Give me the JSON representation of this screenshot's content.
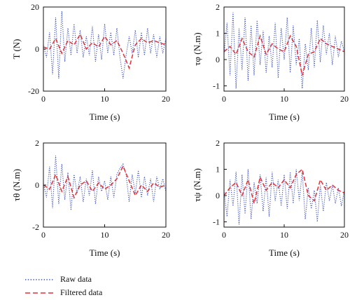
{
  "colors": {
    "raw": "#3b4fbf",
    "filtered": "#e0303a",
    "axis": "#111111"
  },
  "legend": [
    {
      "label": "Raw data",
      "series": "raw",
      "style": "dotted"
    },
    {
      "label": "Filtered data",
      "series": "filtered",
      "style": "dashed"
    }
  ],
  "chart_data": [
    {
      "type": "line",
      "xlabel": "Time (s)",
      "ylabel": "T (N)",
      "xlim": [
        0,
        20
      ],
      "ylim": [
        -20,
        20
      ],
      "xticks": [
        0,
        10,
        20
      ],
      "yticks": [
        -20,
        0,
        20
      ],
      "series": [
        {
          "name": "Raw data",
          "key": "raw",
          "x": [
            0,
            0.5,
            1,
            1.5,
            2,
            2.5,
            3,
            3.5,
            4,
            4.5,
            5,
            5.5,
            6,
            6.5,
            7,
            7.5,
            8,
            8.5,
            9,
            9.5,
            10,
            10.5,
            11,
            11.5,
            12,
            12.5,
            13,
            13.5,
            14,
            14.5,
            15,
            15.5,
            16,
            16.5,
            17,
            17.5,
            18,
            18.5,
            19,
            19.5,
            20
          ],
          "y": [
            2,
            -4,
            8,
            -12,
            15,
            -14,
            18,
            -6,
            10,
            -3,
            12,
            -2,
            9,
            -4,
            6,
            -3,
            11,
            -6,
            7,
            -5,
            12,
            -2,
            8,
            -3,
            10,
            -4,
            -14,
            -3,
            6,
            -2,
            9,
            -4,
            8,
            -3,
            10,
            -2,
            7,
            -4,
            6,
            -2,
            5
          ]
        },
        {
          "name": "Filtered data",
          "key": "filtered",
          "x": [
            0,
            1,
            2,
            3,
            4,
            5,
            6,
            7,
            8,
            9,
            10,
            11,
            12,
            13,
            14,
            15,
            16,
            17,
            18,
            19,
            20
          ],
          "y": [
            1,
            0,
            5,
            -2,
            4,
            2,
            7,
            0,
            3,
            1,
            6,
            2,
            4,
            -2,
            -9,
            2,
            5,
            3,
            4,
            3,
            2
          ]
        }
      ]
    },
    {
      "type": "line",
      "xlabel": "Time (s)",
      "ylabel": "τφ (N.m)",
      "xlim": [
        0,
        20
      ],
      "ylim": [
        -1.2,
        2
      ],
      "xticks": [
        0,
        10,
        20
      ],
      "yticks": [
        -1,
        0,
        1,
        2
      ],
      "series": [
        {
          "name": "Raw data",
          "key": "raw",
          "x": [
            0,
            0.5,
            1,
            1.5,
            2,
            2.5,
            3,
            3.5,
            4,
            4.5,
            5,
            5.5,
            6,
            6.5,
            7,
            7.5,
            8,
            8.5,
            9,
            9.5,
            10,
            10.5,
            11,
            11.5,
            12,
            12.5,
            13,
            13.5,
            14,
            14.5,
            15,
            15.5,
            16,
            16.5,
            17,
            17.5,
            18,
            18.5,
            19,
            19.5,
            20
          ],
          "y": [
            0.2,
            1.4,
            -0.6,
            1.8,
            -1.1,
            1.2,
            -0.4,
            1.6,
            -0.8,
            1.3,
            -0.6,
            1.5,
            -0.2,
            1.1,
            -0.5,
            0.9,
            -0.3,
            1.4,
            -0.7,
            1.2,
            0.0,
            1.6,
            -0.5,
            1.3,
            -0.2,
            0.8,
            -1.1,
            0.6,
            -0.4,
            1.2,
            -0.3,
            1.5,
            -0.1,
            1.3,
            0.2,
            1.0,
            -0.2,
            0.9,
            0.1,
            0.7,
            0.3
          ]
        },
        {
          "name": "Filtered data",
          "key": "filtered",
          "x": [
            0,
            1,
            2,
            3,
            4,
            5,
            6,
            7,
            8,
            9,
            10,
            11,
            12,
            13,
            14,
            15,
            16,
            17,
            18,
            19,
            20
          ],
          "y": [
            0.3,
            0.5,
            0.2,
            0.8,
            0.3,
            0.1,
            0.9,
            0.2,
            0.6,
            0.4,
            0.3,
            0.9,
            0.5,
            -0.6,
            0.2,
            0.3,
            0.8,
            0.6,
            0.5,
            0.4,
            0.3
          ]
        }
      ]
    },
    {
      "type": "line",
      "xlabel": "Time (s)",
      "ylabel": "τθ (N.m)",
      "xlim": [
        0,
        20
      ],
      "ylim": [
        -2,
        2
      ],
      "xticks": [
        0,
        10,
        20
      ],
      "yticks": [
        -2,
        0,
        2
      ],
      "series": [
        {
          "name": "Raw data",
          "key": "raw",
          "x": [
            0,
            0.5,
            1,
            1.5,
            2,
            2.5,
            3,
            3.5,
            4,
            4.5,
            5,
            5.5,
            6,
            6.5,
            7,
            7.5,
            8,
            8.5,
            9,
            9.5,
            10,
            10.5,
            11,
            11.5,
            12,
            12.5,
            13,
            13.5,
            14,
            14.5,
            15,
            15.5,
            16,
            16.5,
            17,
            17.5,
            18,
            18.5,
            19,
            19.5,
            20
          ],
          "y": [
            0.1,
            -0.6,
            0.9,
            -1.1,
            1.4,
            -0.9,
            1.0,
            -0.7,
            0.6,
            -1.2,
            0.5,
            -0.4,
            0.4,
            -0.8,
            0.3,
            -0.5,
            0.7,
            -0.9,
            0.4,
            -0.3,
            0.2,
            -0.7,
            0.4,
            -0.6,
            0.5,
            0.8,
            1.0,
            0.5,
            -0.8,
            0.5,
            -0.4,
            0.7,
            -0.6,
            0.4,
            -0.5,
            0.3,
            -0.8,
            0.4,
            -0.2,
            0.3,
            -0.3
          ]
        },
        {
          "name": "Filtered data",
          "key": "filtered",
          "x": [
            0,
            1,
            2,
            3,
            4,
            5,
            6,
            7,
            8,
            9,
            10,
            11,
            12,
            13,
            14,
            15,
            16,
            17,
            18,
            19,
            20
          ],
          "y": [
            0.0,
            -0.2,
            0.5,
            -0.3,
            0.4,
            -0.6,
            0.0,
            0.2,
            -0.3,
            0.1,
            -0.2,
            0.0,
            0.3,
            0.9,
            0.2,
            -0.5,
            0.0,
            -0.3,
            0.1,
            -0.1,
            0.0
          ]
        }
      ]
    },
    {
      "type": "line",
      "xlabel": "Time (s)",
      "ylabel": "τψ (N.m)",
      "xlim": [
        0,
        20
      ],
      "ylim": [
        -1.2,
        2
      ],
      "xticks": [
        0,
        10,
        20
      ],
      "yticks": [
        -1,
        0,
        1,
        2
      ],
      "series": [
        {
          "name": "Raw data",
          "key": "raw",
          "x": [
            0,
            0.5,
            1,
            1.5,
            2,
            2.5,
            3,
            3.5,
            4,
            4.5,
            5,
            5.5,
            6,
            6.5,
            7,
            7.5,
            8,
            8.5,
            9,
            9.5,
            10,
            10.5,
            11,
            11.5,
            12,
            12.5,
            13,
            13.5,
            14,
            14.5,
            15,
            15.5,
            16,
            16.5,
            17,
            17.5,
            18,
            18.5,
            19,
            19.5,
            20
          ],
          "y": [
            0.2,
            -0.8,
            0.6,
            -0.4,
            0.9,
            -1.1,
            0.8,
            -0.7,
            1.0,
            -0.9,
            0.5,
            -0.3,
            0.8,
            -0.6,
            0.7,
            -0.8,
            0.9,
            -0.2,
            0.6,
            -0.4,
            0.8,
            -0.5,
            0.9,
            -0.3,
            1.0,
            -0.2,
            0.9,
            -0.9,
            0.3,
            -0.5,
            0.2,
            -1.0,
            0.4,
            -0.6,
            0.5,
            -0.2,
            0.4,
            -0.3,
            0.3,
            -0.4,
            0.2
          ]
        },
        {
          "name": "Filtered data",
          "key": "filtered",
          "x": [
            0,
            1,
            2,
            3,
            4,
            5,
            6,
            7,
            8,
            9,
            10,
            11,
            12,
            13,
            14,
            15,
            16,
            17,
            18,
            19,
            20
          ],
          "y": [
            0.0,
            0.3,
            0.5,
            0.0,
            0.6,
            -0.3,
            0.7,
            0.2,
            0.5,
            0.3,
            0.6,
            0.3,
            0.8,
            1.0,
            0.0,
            -0.2,
            0.6,
            0.2,
            0.4,
            0.2,
            0.1
          ]
        }
      ]
    }
  ]
}
